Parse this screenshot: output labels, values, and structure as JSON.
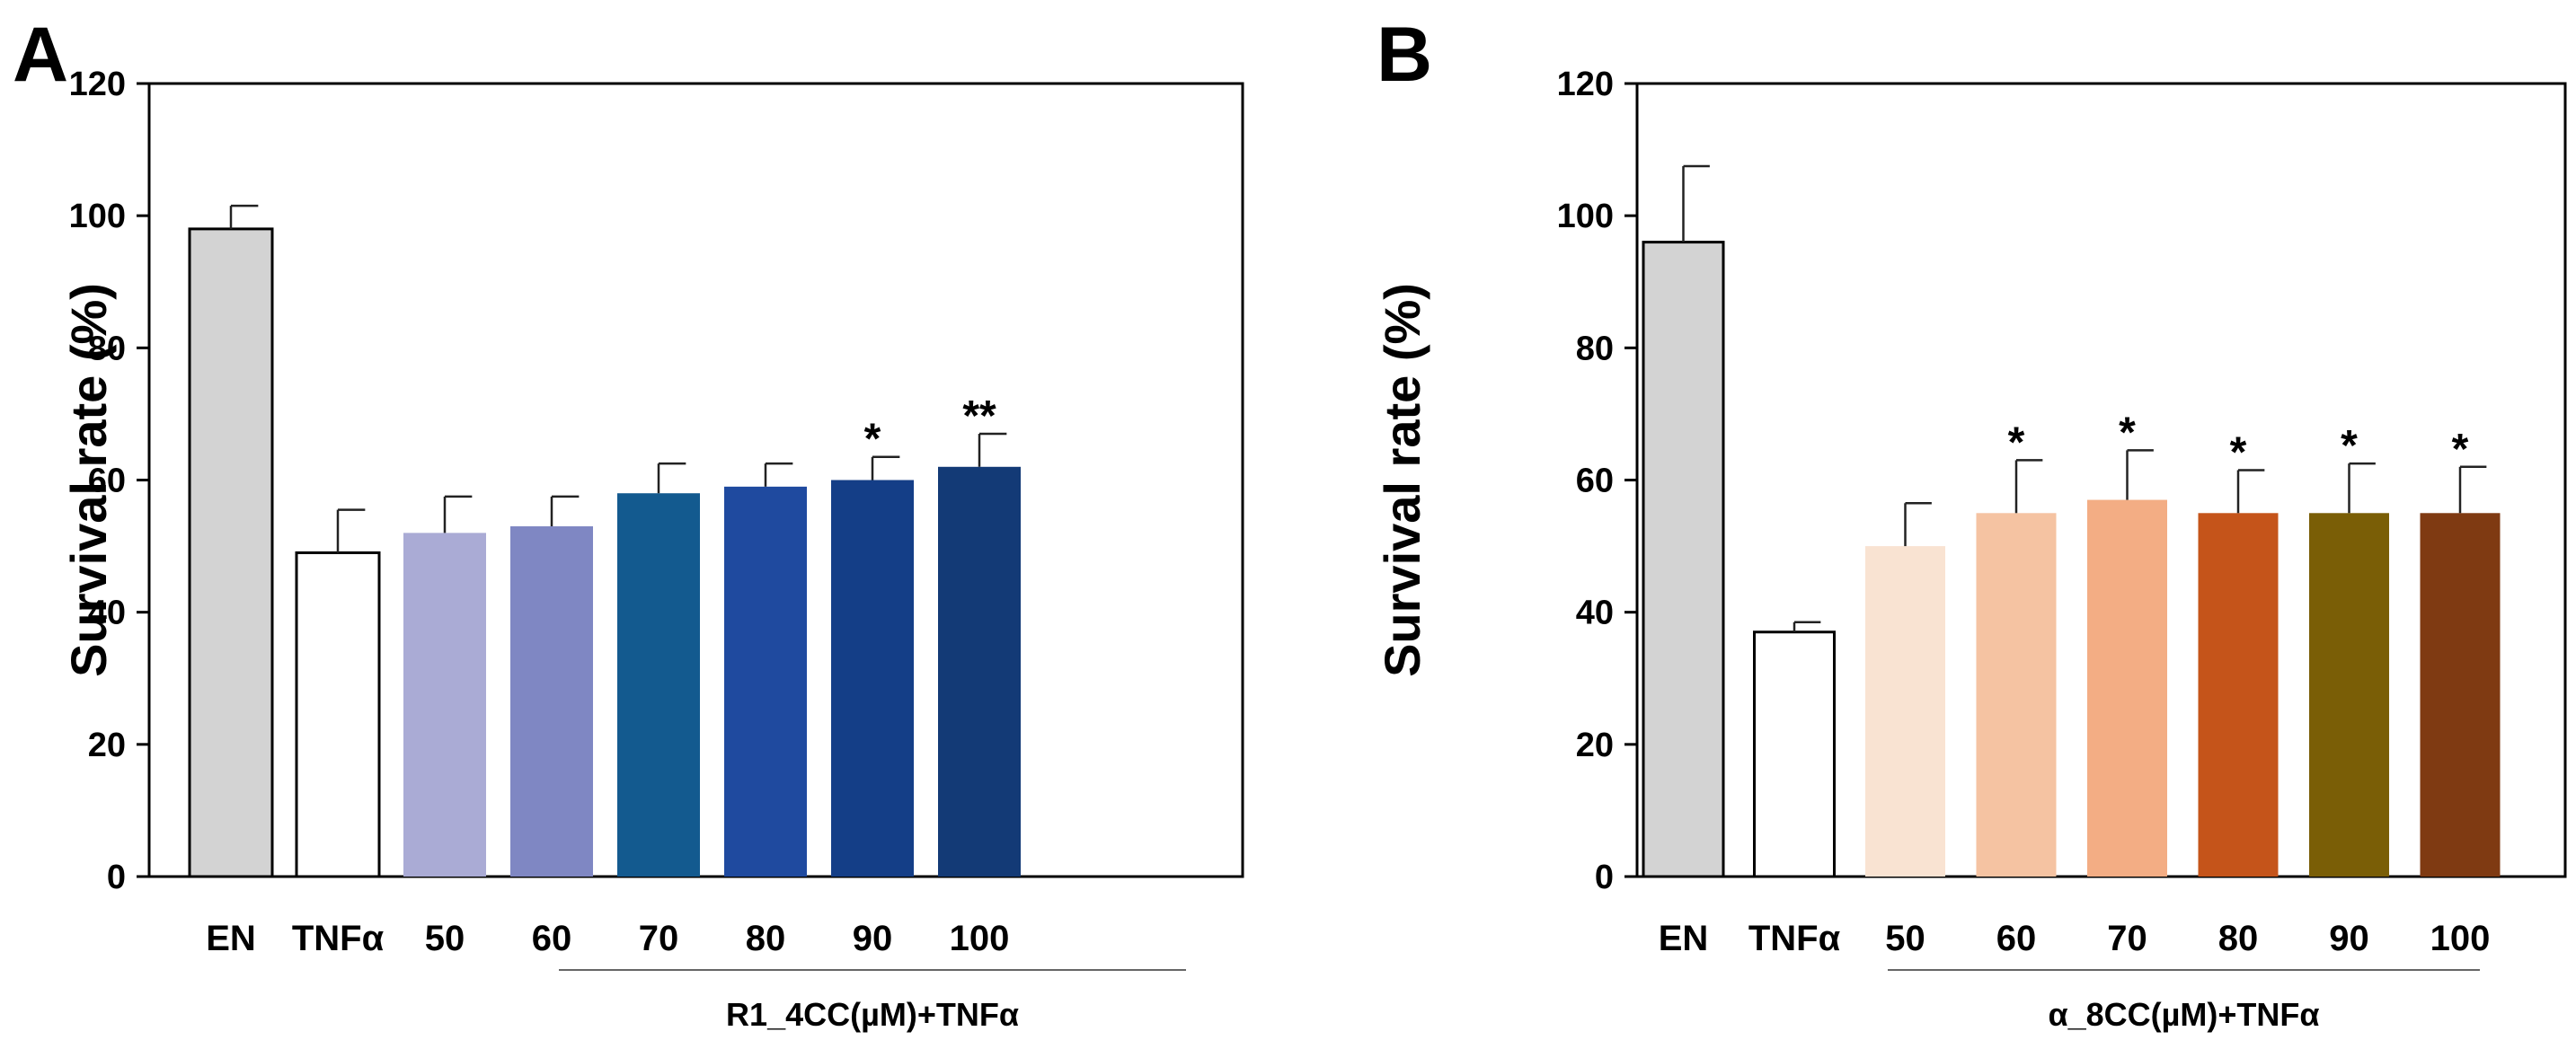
{
  "chart_data": [
    {
      "type": "bar",
      "panel_label": "A",
      "title": "",
      "ylabel": "Survival rate (%)",
      "xlabel": "",
      "ylim": [
        0,
        120
      ],
      "yticks": [
        0,
        20,
        40,
        60,
        80,
        100,
        120
      ],
      "group_label": "R1_4CC(µM)+TNFα",
      "categories": [
        "EN",
        "TNFα",
        "50",
        "60",
        "70",
        "80",
        "90",
        "100"
      ],
      "values": [
        98,
        49,
        52,
        53,
        58,
        59,
        60,
        62
      ],
      "errors": [
        3.5,
        6.5,
        5.5,
        4.5,
        4.5,
        3.5,
        3.5,
        5.0
      ],
      "annotations": [
        "",
        "",
        "",
        "",
        "",
        "",
        "*",
        "**"
      ],
      "colors": [
        "#d3d3d3",
        "#ffffff",
        "#aaabd5",
        "#7f87c3",
        "#135a8f",
        "#1f4a9f",
        "#143e87",
        "#133a76"
      ],
      "outlined": [
        true,
        true,
        false,
        false,
        false,
        false,
        false,
        false
      ]
    },
    {
      "type": "bar",
      "panel_label": "B",
      "title": "",
      "ylabel": "Survival rate (%)",
      "xlabel": "",
      "ylim": [
        0,
        120
      ],
      "yticks": [
        0,
        20,
        40,
        60,
        80,
        100,
        120
      ],
      "group_label": "α_8CC(µM)+TNFα",
      "categories": [
        "EN",
        "TNFα",
        "50",
        "60",
        "70",
        "80",
        "90",
        "100"
      ],
      "values": [
        96,
        37,
        50,
        55,
        57,
        55,
        55,
        55
      ],
      "errors": [
        11.5,
        1.5,
        6.5,
        8,
        7.5,
        6.5,
        7.5,
        7
      ],
      "annotations": [
        "",
        "",
        "",
        "*",
        "*",
        "*",
        "*",
        "*"
      ],
      "colors": [
        "#d3d3d3",
        "#ffffff",
        "#f9e3d2",
        "#f5c3a2",
        "#f3ad84",
        "#c5541a",
        "#7a5e06",
        "#7f3a12"
      ],
      "outlined": [
        true,
        true,
        false,
        false,
        false,
        false,
        false,
        false
      ]
    }
  ]
}
